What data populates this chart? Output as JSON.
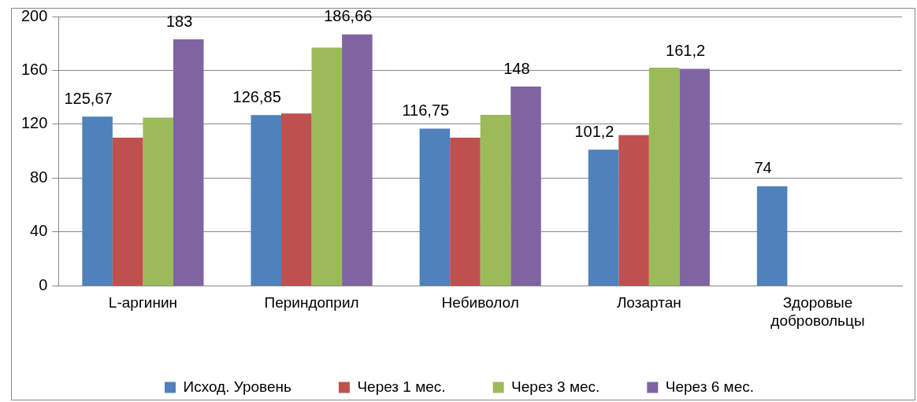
{
  "chart_data": {
    "type": "bar",
    "categories": [
      "L-аргинин",
      "Периндоприл",
      "Небиволол",
      "Лозартан",
      "Здоровые добровольцы"
    ],
    "series": [
      {
        "name": "Исход. Уровень",
        "color": "#4f81bd",
        "values": [
          125.67,
          126.85,
          116.75,
          101.2,
          74
        ],
        "value_labels": [
          "125,67",
          "126,85",
          "116,75",
          "101,2",
          "74"
        ]
      },
      {
        "name": "Через 1 мес.",
        "color": "#c0504d",
        "values": [
          110,
          128,
          110,
          112,
          null
        ]
      },
      {
        "name": "Через 3 мес.",
        "color": "#9bbb59",
        "values": [
          125,
          177,
          127,
          162,
          null
        ]
      },
      {
        "name": "Через 6 мес.",
        "color": "#8064a2",
        "values": [
          183,
          186.66,
          148,
          161.2,
          null
        ],
        "value_labels": [
          "183",
          "186,66",
          "148",
          "161,2",
          null
        ]
      }
    ],
    "ylim": [
      0,
      200
    ],
    "yticks": [
      0,
      40,
      80,
      120,
      160,
      200
    ],
    "grid": "y",
    "legend": "bottom"
  }
}
